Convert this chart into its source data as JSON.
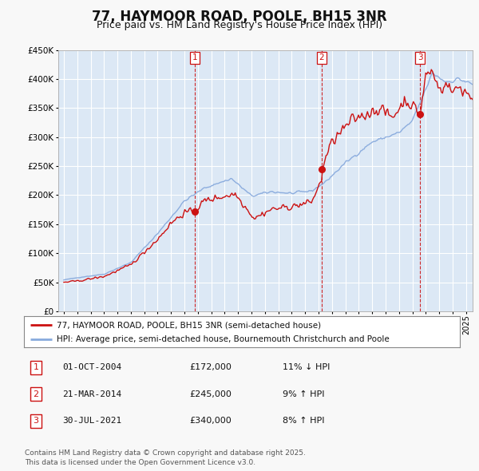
{
  "title": "77, HAYMOOR ROAD, POOLE, BH15 3NR",
  "subtitle": "Price paid vs. HM Land Registry's House Price Index (HPI)",
  "legend_line1": "77, HAYMOOR ROAD, POOLE, BH15 3NR (semi-detached house)",
  "legend_line2": "HPI: Average price, semi-detached house, Bournemouth Christchurch and Poole",
  "footnote": "Contains HM Land Registry data © Crown copyright and database right 2025.\nThis data is licensed under the Open Government Licence v3.0.",
  "table": [
    {
      "num": "1",
      "date": "01-OCT-2004",
      "price": "£172,000",
      "change": "11% ↓ HPI"
    },
    {
      "num": "2",
      "date": "21-MAR-2014",
      "price": "£245,000",
      "change": "9% ↑ HPI"
    },
    {
      "num": "3",
      "date": "30-JUL-2021",
      "price": "£340,000",
      "change": "8% ↑ HPI"
    }
  ],
  "purchase_dates": [
    2004.75,
    2014.22,
    2021.58
  ],
  "purchase_prices": [
    172000,
    245000,
    340000
  ],
  "ylim": [
    0,
    450000
  ],
  "yticks": [
    0,
    50000,
    100000,
    150000,
    200000,
    250000,
    300000,
    350000,
    400000,
    450000
  ],
  "xlim_start": 1994.6,
  "xlim_end": 2025.5,
  "xtick_start": 1995,
  "xtick_end": 2025,
  "fig_bg_color": "#f8f8f8",
  "plot_bg_color": "#dce8f5",
  "grid_color": "#ffffff",
  "hpi_line_color": "#88aadd",
  "price_line_color": "#cc1111",
  "vline_color": "#cc1111",
  "marker_color": "#cc1111",
  "title_fontsize": 12,
  "subtitle_fontsize": 9
}
